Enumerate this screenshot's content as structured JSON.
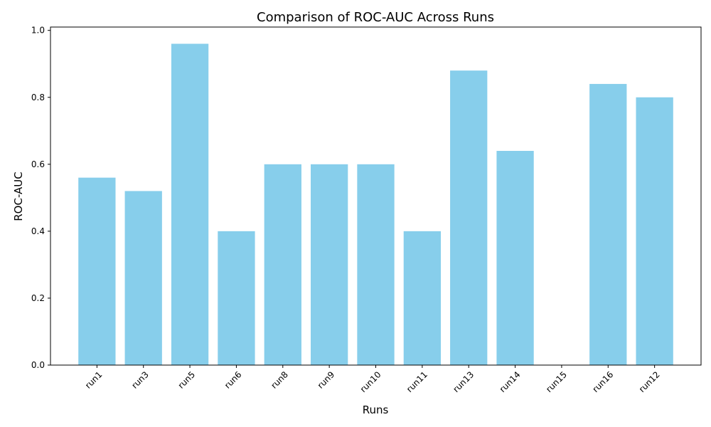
{
  "chart_data": {
    "type": "bar",
    "title": "Comparison of ROC-AUC Across Runs",
    "xlabel": "Runs",
    "ylabel": "ROC-AUC",
    "categories": [
      "run1",
      "run3",
      "run5",
      "run6",
      "run8",
      "run9",
      "run10",
      "run11",
      "run13",
      "run14",
      "run15",
      "run16",
      "run12"
    ],
    "values": [
      0.56,
      0.52,
      0.96,
      0.4,
      0.6,
      0.6,
      0.6,
      0.4,
      0.88,
      0.64,
      0.0,
      0.84,
      0.8
    ],
    "ylim": [
      0,
      1.0
    ],
    "yticks": [
      "0.0",
      "0.2",
      "0.4",
      "0.6",
      "0.8",
      "1.0"
    ],
    "bar_color": "#87ceeb",
    "grid": false,
    "legend": "none"
  }
}
